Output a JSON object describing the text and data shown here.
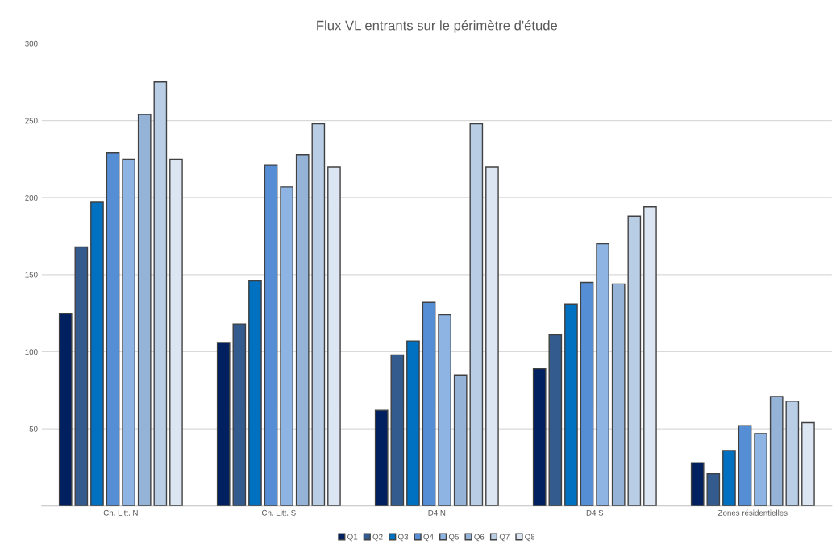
{
  "chart_data": {
    "type": "bar",
    "title": "Flux VL entrants sur le périmètre d'étude",
    "categories": [
      "Ch. Litt. N",
      "Ch. Litt. S",
      "D4 N",
      "D4 S",
      "Zones résidentielles"
    ],
    "series": [
      {
        "name": "Q1",
        "color": "#002060",
        "values": [
          125,
          106,
          62,
          89,
          28
        ]
      },
      {
        "name": "Q2",
        "color": "#335b8e",
        "values": [
          168,
          118,
          98,
          111,
          21
        ]
      },
      {
        "name": "Q3",
        "color": "#0070c0",
        "values": [
          197,
          146,
          107,
          131,
          36
        ]
      },
      {
        "name": "Q4",
        "color": "#558ed5",
        "values": [
          229,
          221,
          132,
          145,
          52
        ]
      },
      {
        "name": "Q5",
        "color": "#8db4e2",
        "values": [
          225,
          207,
          124,
          170,
          47
        ]
      },
      {
        "name": "Q6",
        "color": "#95b3d7",
        "values": [
          254,
          228,
          85,
          144,
          71
        ]
      },
      {
        "name": "Q7",
        "color": "#b9cde5",
        "values": [
          275,
          248,
          248,
          188,
          68
        ]
      },
      {
        "name": "Q8",
        "color": "#dce6f2",
        "values": [
          225,
          220,
          220,
          194,
          54
        ]
      }
    ],
    "ylim": [
      0,
      300
    ],
    "yticks": [
      50,
      100,
      150,
      200,
      250,
      300
    ],
    "grid": "y",
    "legend": "bottom"
  }
}
